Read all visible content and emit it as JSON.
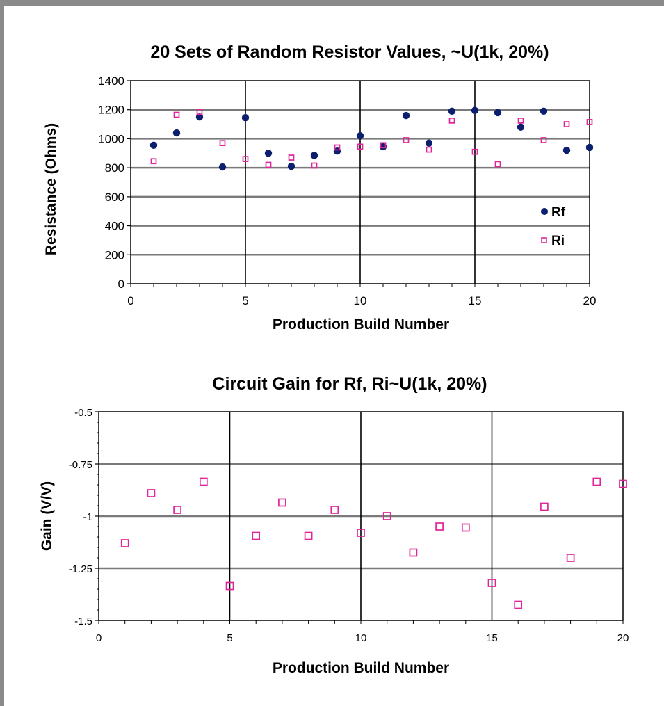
{
  "chart_data": [
    {
      "type": "scatter",
      "title": "20 Sets of Random Resistor Values, ~U(1k, 20%)",
      "xlabel": "Production Build Number",
      "ylabel": "Resistance (Ohms)",
      "xlim": [
        0,
        20
      ],
      "ylim": [
        0,
        1400
      ],
      "xticks": [
        "0",
        "5",
        "10",
        "15",
        "20"
      ],
      "yticks": [
        "0",
        "200",
        "400",
        "600",
        "800",
        "1000",
        "1200",
        "1400"
      ],
      "grid": true,
      "legend": "right",
      "series": [
        {
          "name": "Rf",
          "marker": "filled-circle",
          "color": "#0b1f6e",
          "x": [
            1,
            2,
            3,
            4,
            5,
            6,
            7,
            8,
            9,
            10,
            11,
            12,
            13,
            14,
            15,
            16,
            17,
            18,
            19,
            20
          ],
          "y": [
            955,
            1040,
            1150,
            805,
            1145,
            900,
            810,
            885,
            915,
            1020,
            945,
            1160,
            970,
            1190,
            1195,
            1180,
            1080,
            1190,
            920,
            940
          ]
        },
        {
          "name": "Ri",
          "marker": "open-square",
          "color": "#e0249a",
          "x": [
            1,
            2,
            3,
            4,
            5,
            6,
            7,
            8,
            9,
            10,
            11,
            12,
            13,
            14,
            15,
            16,
            17,
            18,
            19,
            20
          ],
          "y": [
            845,
            1165,
            1185,
            970,
            860,
            820,
            870,
            815,
            940,
            945,
            955,
            990,
            925,
            1125,
            910,
            825,
            1125,
            990,
            1100,
            1115
          ]
        }
      ]
    },
    {
      "type": "scatter",
      "title": "Circuit Gain for Rf, Ri~U(1k, 20%)",
      "xlabel": "Production Build Number",
      "ylabel": "Gain (V/V)",
      "xlim": [
        0,
        20
      ],
      "ylim": [
        -1.5,
        -0.5
      ],
      "xticks": [
        "0",
        "5",
        "10",
        "15",
        "20"
      ],
      "yticks": [
        "-1.5",
        "-1.25",
        "-1",
        "-0.75",
        "-0.5"
      ],
      "grid": true,
      "legend": "none",
      "series": [
        {
          "marker": "open-square",
          "color": "#e0249a",
          "x": [
            1,
            2,
            3,
            4,
            5,
            6,
            7,
            8,
            9,
            10,
            11,
            12,
            13,
            14,
            15,
            16,
            17,
            18,
            19,
            20
          ],
          "y": [
            -1.13,
            -0.89,
            -0.97,
            -0.835,
            -1.335,
            -1.095,
            -0.935,
            -1.095,
            -0.97,
            -1.08,
            -1.0,
            -1.175,
            -1.05,
            -1.055,
            -1.32,
            -1.425,
            -0.955,
            -1.2,
            -0.835,
            -0.845
          ]
        }
      ]
    }
  ]
}
